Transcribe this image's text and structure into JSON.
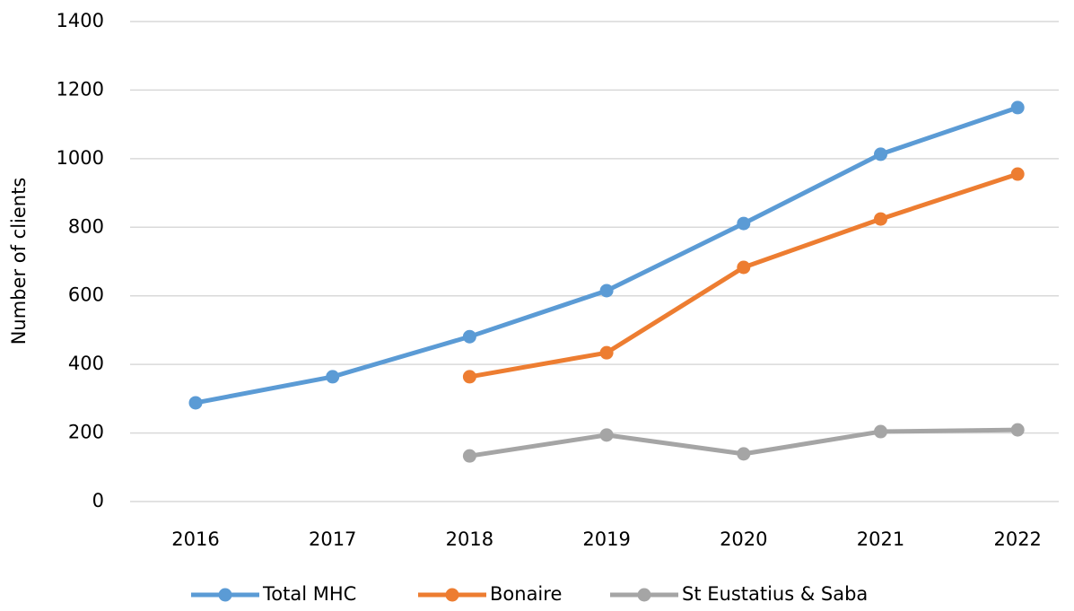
{
  "chart_data": {
    "type": "line",
    "y_label": "Number of clients",
    "categories": [
      "2016",
      "2017",
      "2018",
      "2019",
      "2020",
      "2021",
      "2022"
    ],
    "series": [
      {
        "name": "Total MHC",
        "color": "#5b9bd5",
        "values": [
          288,
          364,
          481,
          615,
          811,
          1013,
          1149
        ]
      },
      {
        "name": "Bonaire",
        "color": "#ed7d31",
        "values": [
          null,
          null,
          364,
          434,
          683,
          824,
          955
        ]
      },
      {
        "name": "St Eustatius & Saba",
        "color": "#a5a5a5",
        "values": [
          null,
          null,
          133,
          194,
          139,
          204,
          209
        ]
      }
    ],
    "ylim": [
      0,
      1400
    ],
    "yticks": [
      0,
      200,
      400,
      600,
      800,
      1000,
      1200,
      1400
    ],
    "grid": true,
    "legend": "bottom"
  }
}
